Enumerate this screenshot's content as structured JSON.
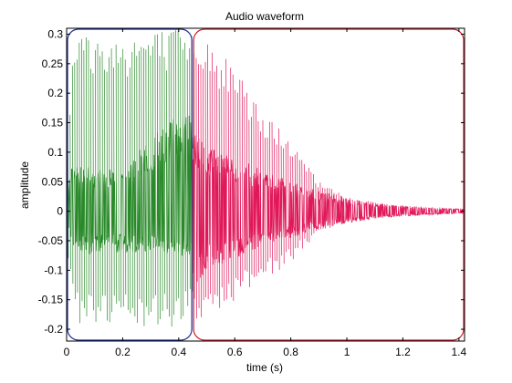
{
  "chart_data": {
    "type": "line",
    "title": "Audio waveform",
    "xlabel": "time (s)",
    "ylabel": "amplitude",
    "xlim": [
      0,
      1.42
    ],
    "ylim": [
      -0.22,
      0.31
    ],
    "grid": false,
    "x_ticks": [
      0,
      0.2,
      0.4,
      0.6,
      0.8,
      1,
      1.2,
      1.4
    ],
    "x_tick_labels": [
      "0",
      "0.2",
      "0.4",
      "0.6",
      "0.8",
      "1",
      "1.2",
      "1.4"
    ],
    "y_ticks": [
      -0.2,
      -0.15,
      -0.1,
      -0.05,
      0,
      0.05,
      0.1,
      0.15,
      0.2,
      0.25,
      0.3
    ],
    "y_tick_labels": [
      "-0.2",
      "-0.15",
      "-0.1",
      "-0.05",
      "0",
      "0.05",
      "0.1",
      "0.15",
      "0.2",
      "0.25",
      "0.3"
    ],
    "segments": [
      {
        "color": "#2a8a2a",
        "x_range": [
          0,
          0.45
        ],
        "envelope": {
          "t": [
            0.0,
            0.02,
            0.05,
            0.1,
            0.15,
            0.2,
            0.25,
            0.3,
            0.35,
            0.4,
            0.45
          ],
          "upper": [
            0.04,
            0.08,
            0.08,
            0.07,
            0.07,
            0.08,
            0.1,
            0.12,
            0.15,
            0.16,
            0.17
          ],
          "lower": [
            -0.04,
            -0.06,
            -0.08,
            -0.07,
            -0.07,
            -0.07,
            -0.07,
            -0.07,
            -0.07,
            -0.08,
            -0.08
          ]
        },
        "spike_interval": 0.0082,
        "spikes": {
          "t": [
            0.0,
            0.02,
            0.05,
            0.1,
            0.15,
            0.2,
            0.25,
            0.3,
            0.35,
            0.4,
            0.45
          ],
          "upper": [
            0.08,
            0.29,
            0.31,
            0.3,
            0.3,
            0.3,
            0.31,
            0.31,
            0.31,
            0.31,
            0.3
          ],
          "lower": [
            -0.08,
            -0.15,
            -0.2,
            -0.2,
            -0.2,
            -0.2,
            -0.2,
            -0.2,
            -0.2,
            -0.2,
            -0.15
          ]
        },
        "selection_box": {
          "color": "#1f2f99",
          "x_range": [
            0,
            0.45
          ]
        }
      },
      {
        "color": "#e0185a",
        "x_range": [
          0.45,
          1.42
        ],
        "envelope": {
          "t": [
            0.45,
            0.5,
            0.6,
            0.7,
            0.8,
            0.9,
            1.0,
            1.1,
            1.2,
            1.3,
            1.42
          ],
          "upper": [
            0.14,
            0.11,
            0.09,
            0.07,
            0.05,
            0.035,
            0.022,
            0.014,
            0.009,
            0.006,
            0.004
          ],
          "lower": [
            -0.14,
            -0.1,
            -0.08,
            -0.06,
            -0.045,
            -0.03,
            -0.02,
            -0.013,
            -0.009,
            -0.006,
            -0.004
          ]
        },
        "spike_interval": 0.0082,
        "spikes": {
          "t": [
            0.45,
            0.5,
            0.55,
            0.6,
            0.7,
            0.8,
            0.9,
            1.0,
            1.1,
            1.2,
            1.3,
            1.42
          ],
          "upper": [
            0.3,
            0.3,
            0.27,
            0.24,
            0.17,
            0.12,
            0.05,
            0.025,
            0.015,
            0.01,
            0.007,
            0.005
          ],
          "lower": [
            -0.2,
            -0.19,
            -0.18,
            -0.15,
            -0.12,
            -0.085,
            -0.035,
            -0.02,
            -0.012,
            -0.008,
            -0.006,
            -0.004
          ]
        },
        "selection_box": {
          "color": "#cc1c2e",
          "x_range": [
            0.45,
            1.42
          ]
        }
      }
    ]
  }
}
